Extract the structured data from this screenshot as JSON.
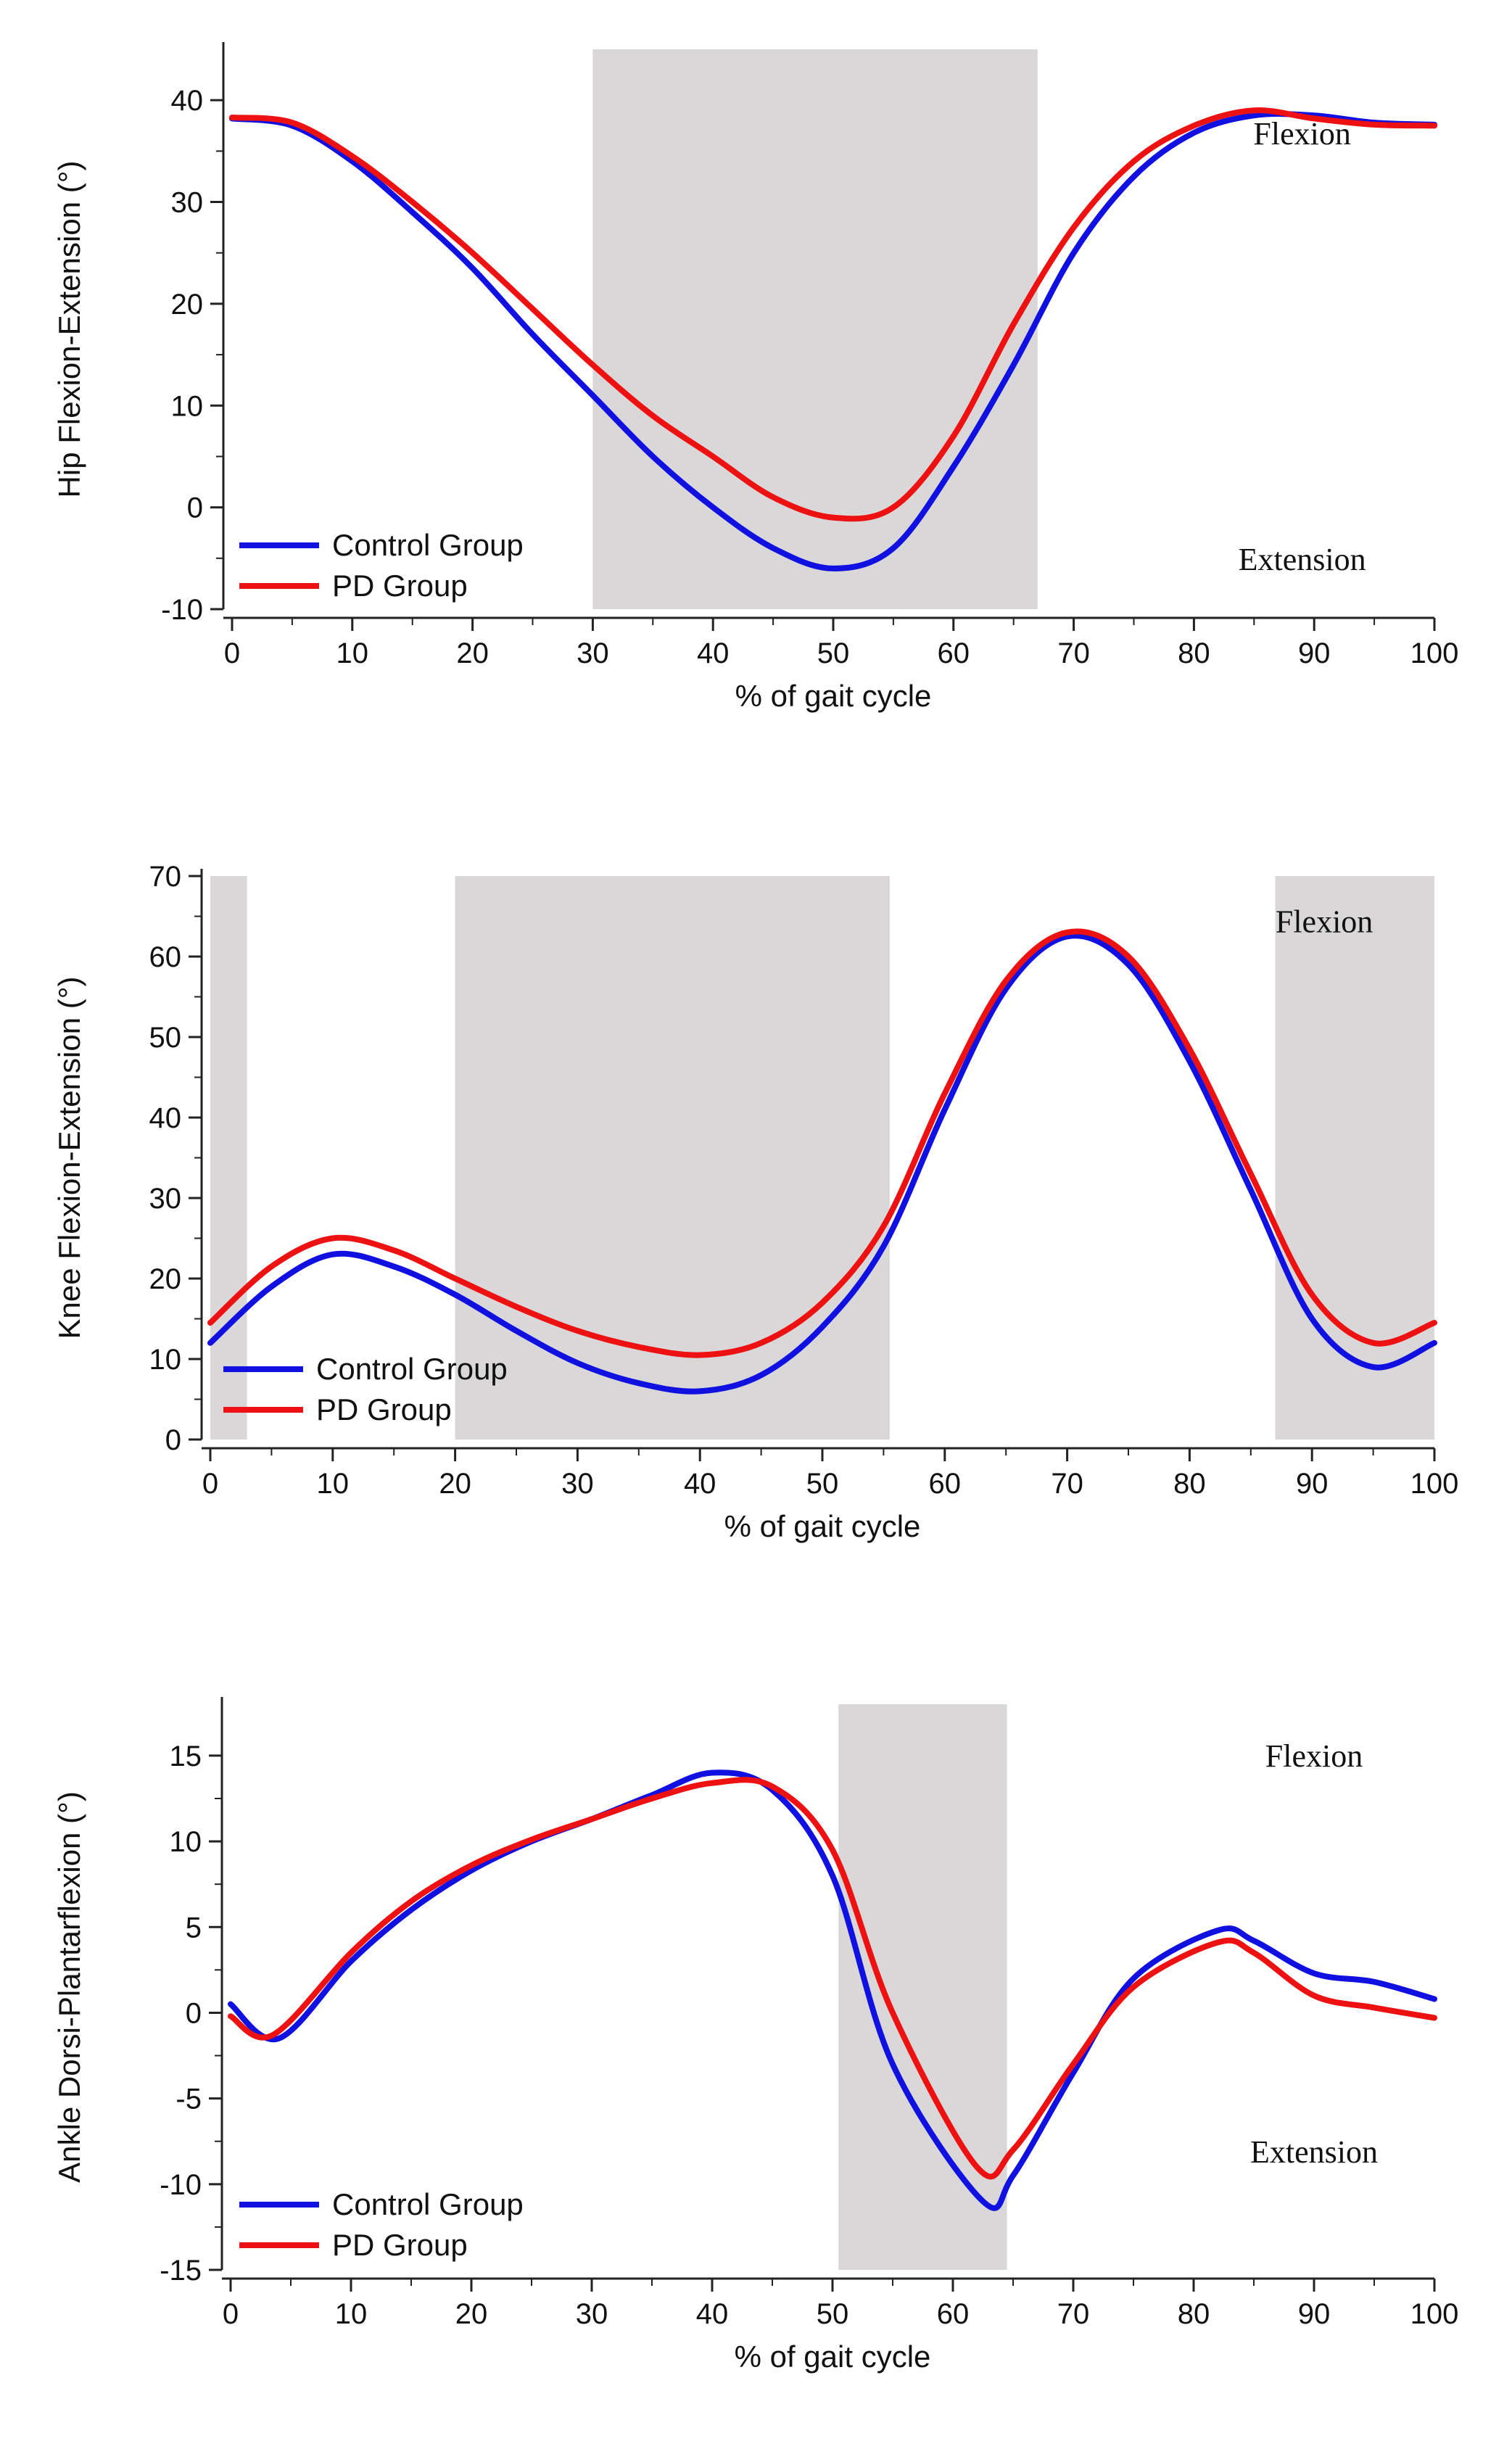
{
  "chart_data": [
    {
      "type": "line",
      "ylabel": "Hip Flexion-Extension (°)",
      "xlabel": "% of gait cycle",
      "xlim": [
        0,
        100
      ],
      "ylim": [
        -10,
        45
      ],
      "xticks": [
        0,
        10,
        20,
        30,
        40,
        50,
        60,
        70,
        80,
        90,
        100
      ],
      "yticks": [
        -10,
        0,
        10,
        20,
        30,
        40
      ],
      "shaded_regions": [
        [
          30,
          67
        ]
      ],
      "annotations": [
        "Flexion",
        "Extension"
      ],
      "legend": [
        "Control Group",
        "PD Group"
      ],
      "legend_position": "bottom-left",
      "colors": {
        "Control Group": "#1010e0",
        "PD Group": "#ee1111",
        "shade": "#d9d7d8"
      },
      "series": [
        {
          "name": "Control Group",
          "x": [
            0,
            5,
            10,
            15,
            20,
            25,
            30,
            35,
            40,
            45,
            50,
            55,
            60,
            65,
            70,
            75,
            80,
            85,
            90,
            95,
            100
          ],
          "values": [
            38.2,
            37.5,
            34,
            29,
            23.5,
            17,
            11,
            5,
            0,
            -4,
            -6,
            -4,
            4,
            14,
            25,
            32.5,
            36.8,
            38.5,
            38.5,
            37.8,
            37.6
          ]
        },
        {
          "name": "PD Group",
          "x": [
            0,
            5,
            10,
            15,
            20,
            25,
            30,
            35,
            40,
            45,
            50,
            55,
            60,
            65,
            70,
            75,
            80,
            85,
            90,
            95,
            100
          ],
          "values": [
            38.3,
            37.8,
            34.5,
            30,
            25,
            19.5,
            14,
            9,
            5,
            1,
            -1,
            0,
            7,
            18,
            27.5,
            34,
            37.5,
            39,
            38.2,
            37.6,
            37.5
          ]
        }
      ]
    },
    {
      "type": "line",
      "ylabel": "Knee Flexion-Extension (°)",
      "xlabel": "% of gait cycle",
      "xlim": [
        0,
        100
      ],
      "ylim": [
        0,
        70
      ],
      "xticks": [
        0,
        10,
        20,
        30,
        40,
        50,
        60,
        70,
        80,
        90,
        100
      ],
      "yticks": [
        0,
        10,
        20,
        30,
        40,
        50,
        60,
        70
      ],
      "shaded_regions": [
        [
          0,
          3
        ],
        [
          20,
          55.5
        ],
        [
          87,
          100
        ]
      ],
      "annotations": [
        "Flexion"
      ],
      "legend": [
        "Control Group",
        "PD Group"
      ],
      "legend_position": "bottom-left",
      "colors": {
        "Control Group": "#1010e0",
        "PD Group": "#ee1111",
        "shade": "#d9d7d8"
      },
      "series": [
        {
          "name": "Control Group",
          "x": [
            0,
            5,
            10,
            15,
            20,
            25,
            30,
            35,
            40,
            45,
            50,
            55,
            60,
            65,
            70,
            75,
            80,
            85,
            90,
            95,
            100
          ],
          "values": [
            12,
            19,
            23,
            21.5,
            18,
            13.5,
            9.5,
            7,
            6,
            8,
            14,
            24,
            41,
            56,
            62.5,
            59,
            47,
            31,
            15,
            9,
            12
          ]
        },
        {
          "name": "PD Group",
          "x": [
            0,
            5,
            10,
            15,
            20,
            25,
            30,
            35,
            40,
            45,
            50,
            55,
            60,
            65,
            70,
            75,
            80,
            85,
            90,
            95,
            100
          ],
          "values": [
            14.5,
            21.5,
            25,
            23.5,
            20,
            16.5,
            13.5,
            11.5,
            10.5,
            12,
            17,
            26.5,
            43,
            57,
            63,
            60,
            48.5,
            33,
            18,
            12,
            14.5
          ]
        }
      ]
    },
    {
      "type": "line",
      "ylabel": "Ankle Dorsi-Plantarflexion (°)",
      "xlabel": "% of gait cycle",
      "xlim": [
        0,
        100
      ],
      "ylim": [
        -15,
        18
      ],
      "xticks": [
        0,
        10,
        20,
        30,
        40,
        50,
        60,
        70,
        80,
        90,
        100
      ],
      "yticks": [
        -15,
        -10,
        -5,
        0,
        5,
        10,
        15
      ],
      "shaded_regions": [
        [
          50.5,
          64.5
        ]
      ],
      "annotations": [
        "Flexion",
        "Extension"
      ],
      "legend": [
        "Control Group",
        "PD Group"
      ],
      "legend_position": "bottom-left",
      "colors": {
        "Control Group": "#1010e0",
        "PD Group": "#ee1111",
        "shade": "#d9d7d8"
      },
      "series": [
        {
          "name": "Control Group",
          "x": [
            0,
            4,
            10,
            15,
            20,
            25,
            30,
            35,
            40,
            45,
            50,
            55,
            62.5,
            65,
            70,
            75,
            82,
            85,
            90,
            95,
            100
          ],
          "values": [
            0.5,
            -1.5,
            3,
            6,
            8.3,
            10,
            11.3,
            12.7,
            14,
            13,
            8,
            -3,
            -11,
            -9.5,
            -3.5,
            2,
            4.8,
            4.2,
            2.3,
            1.8,
            0.8
          ]
        },
        {
          "name": "PD Group",
          "x": [
            0,
            3.5,
            10,
            15,
            20,
            25,
            30,
            35,
            40,
            45,
            50,
            55,
            62,
            65,
            70,
            75,
            82,
            85,
            90,
            95,
            100
          ],
          "values": [
            -0.2,
            -1.3,
            3.5,
            6.5,
            8.6,
            10.1,
            11.3,
            12.5,
            13.4,
            13.2,
            9.5,
            0,
            -9,
            -8,
            -3,
            1.5,
            4.1,
            3.5,
            1,
            0.3,
            -0.3
          ]
        }
      ]
    }
  ]
}
